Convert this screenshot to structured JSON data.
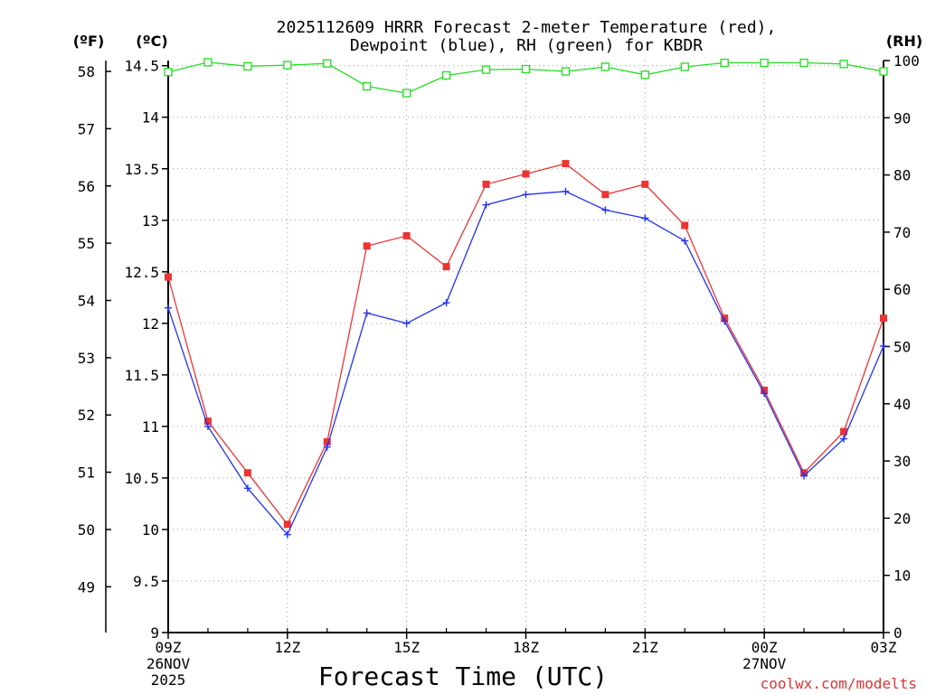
{
  "chart_data": {
    "type": "line",
    "title_line1": "2025112609 HRRR Forecast 2-meter Temperature (red),",
    "title_line2": "Dewpoint (blue), RH (green) for KBDR",
    "xlabel": "Forecast Time (UTC)",
    "watermark": "coolwx.com/modelts",
    "unit_f": "(ºF)",
    "unit_c": "(ºC)",
    "unit_rh": "(RH)",
    "x": [
      0,
      1,
      2,
      3,
      4,
      5,
      6,
      7,
      8,
      9,
      10,
      11,
      12,
      13,
      14,
      15,
      16,
      17,
      18
    ],
    "x_ticks": [
      {
        "x": 0,
        "label": "09Z",
        "sub1": "26NOV",
        "sub2": "2025"
      },
      {
        "x": 3,
        "label": "12Z",
        "sub1": "",
        "sub2": ""
      },
      {
        "x": 6,
        "label": "15Z",
        "sub1": "",
        "sub2": ""
      },
      {
        "x": 9,
        "label": "18Z",
        "sub1": "",
        "sub2": ""
      },
      {
        "x": 12,
        "label": "21Z",
        "sub1": "",
        "sub2": ""
      },
      {
        "x": 15,
        "label": "00Z",
        "sub1": "27NOV",
        "sub2": ""
      },
      {
        "x": 18,
        "label": "03Z",
        "sub1": "",
        "sub2": ""
      }
    ],
    "celsius_range": [
      9,
      14.55
    ],
    "rh_range": [
      0,
      100
    ],
    "celsius_ticks": [
      {
        "v": 9,
        "label": "9"
      },
      {
        "v": 9.5,
        "label": "9.5"
      },
      {
        "v": 10,
        "label": "10"
      },
      {
        "v": 10.5,
        "label": "10.5"
      },
      {
        "v": 11,
        "label": "11"
      },
      {
        "v": 11.5,
        "label": "11.5"
      },
      {
        "v": 12,
        "label": "12"
      },
      {
        "v": 12.5,
        "label": "12.5"
      },
      {
        "v": 13,
        "label": "13"
      },
      {
        "v": 13.5,
        "label": "13.5"
      },
      {
        "v": 14,
        "label": "14"
      },
      {
        "v": 14.5,
        "label": "14.5"
      }
    ],
    "fahrenheit_ticks": [
      {
        "v": 49,
        "label": "49"
      },
      {
        "v": 50,
        "label": "50"
      },
      {
        "v": 51,
        "label": "51"
      },
      {
        "v": 52,
        "label": "52"
      },
      {
        "v": 53,
        "label": "53"
      },
      {
        "v": 54,
        "label": "54"
      },
      {
        "v": 55,
        "label": "55"
      },
      {
        "v": 56,
        "label": "56"
      },
      {
        "v": 57,
        "label": "57"
      },
      {
        "v": 58,
        "label": "58"
      }
    ],
    "rh_ticks": [
      {
        "v": 0,
        "label": "0"
      },
      {
        "v": 10,
        "label": "10"
      },
      {
        "v": 20,
        "label": "20"
      },
      {
        "v": 30,
        "label": "30"
      },
      {
        "v": 40,
        "label": "40"
      },
      {
        "v": 50,
        "label": "50"
      },
      {
        "v": 60,
        "label": "60"
      },
      {
        "v": 70,
        "label": "70"
      },
      {
        "v": 80,
        "label": "80"
      },
      {
        "v": 90,
        "label": "90"
      },
      {
        "v": 100,
        "label": "100"
      }
    ],
    "series": [
      {
        "name": "Temperature",
        "axis": "celsius",
        "color": "#ee3333",
        "marker": "filled-square",
        "values": [
          12.45,
          11.05,
          10.55,
          10.05,
          10.85,
          12.75,
          12.85,
          12.55,
          13.35,
          13.45,
          13.55,
          13.25,
          13.35,
          12.95,
          12.05,
          11.35,
          10.55,
          10.95,
          12.05
        ]
      },
      {
        "name": "Dewpoint",
        "axis": "celsius",
        "color": "#2233ee",
        "marker": "plus",
        "values": [
          12.15,
          11.0,
          10.4,
          9.95,
          10.8,
          12.1,
          12.0,
          12.2,
          13.15,
          13.25,
          13.28,
          13.1,
          13.02,
          12.8,
          12.02,
          11.32,
          10.52,
          10.88,
          11.78
        ]
      },
      {
        "name": "RH",
        "axis": "rh",
        "color": "#22dd22",
        "marker": "open-square",
        "values": [
          98,
          99.7,
          99,
          99.2,
          99.5,
          95.5,
          94.3,
          97.4,
          98.4,
          98.5,
          98.1,
          98.9,
          97.5,
          98.9,
          99.6,
          99.6,
          99.6,
          99.4,
          98.1
        ]
      }
    ]
  }
}
